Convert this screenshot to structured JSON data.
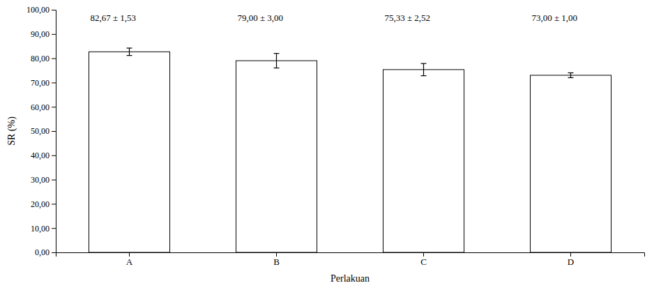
{
  "chart_data": {
    "type": "bar",
    "xlabel": "Perlakuan",
    "ylabel": "SR (%)",
    "categories": [
      "A",
      "B",
      "C",
      "D"
    ],
    "values": [
      82.67,
      79.0,
      75.33,
      73.0
    ],
    "errors": [
      1.53,
      3.0,
      2.52,
      1.0
    ],
    "annotations": [
      "82,67 ± 1,53",
      "79,00 ± 3,00",
      "75,33 ± 2,52",
      "73,00 ± 1,00"
    ],
    "color": "#ffffff",
    "ylim": [
      0,
      100
    ],
    "yticks": [
      {
        "value": 0,
        "label": "0,00"
      },
      {
        "value": 10,
        "label": "10,00"
      },
      {
        "value": 20,
        "label": "20,00"
      },
      {
        "value": 30,
        "label": "30,00"
      },
      {
        "value": 40,
        "label": "40,00"
      },
      {
        "value": 50,
        "label": "50,00"
      },
      {
        "value": 60,
        "label": "60,00"
      },
      {
        "value": 70,
        "label": "70,00"
      },
      {
        "value": 80,
        "label": "80,00"
      },
      {
        "value": 90,
        "label": "90,00"
      },
      {
        "value": 100,
        "label": "100,00"
      }
    ],
    "grid": false
  }
}
